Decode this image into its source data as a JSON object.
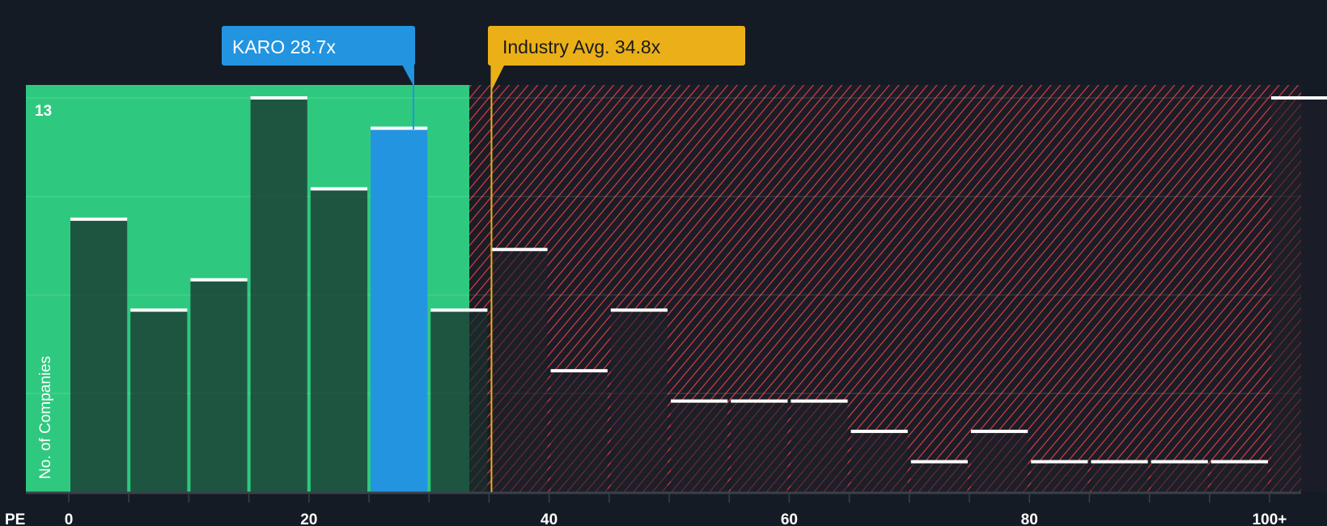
{
  "chart_data": {
    "type": "bar",
    "title": "",
    "xlabel": "PE",
    "ylabel": "No. of Companies",
    "ylim": [
      0,
      13
    ],
    "y_tick_labels": [
      "13"
    ],
    "x_tick_labels": [
      "0",
      "20",
      "40",
      "60",
      "80",
      "100+"
    ],
    "x_tick_values": [
      0,
      20,
      40,
      60,
      80,
      100
    ],
    "bin_width": 5,
    "bins": [
      0,
      5,
      10,
      15,
      20,
      25,
      30,
      35,
      40,
      45,
      50,
      55,
      60,
      65,
      70,
      75,
      80,
      85,
      90,
      95,
      100
    ],
    "values": [
      9,
      6,
      7,
      13,
      10,
      12,
      6,
      8,
      4,
      6,
      3,
      3,
      3,
      2,
      1,
      2,
      1,
      1,
      1,
      1,
      13
    ],
    "highlight_bin": 25,
    "company": {
      "label": "KARO 28.7x",
      "value": 28.7,
      "color": "#2394e0"
    },
    "industry": {
      "label": "Industry Avg. 34.8x",
      "value": 34.8,
      "color": "#ebb018"
    },
    "colors": {
      "background": "#151b24",
      "fair_zone": "#2ec97e",
      "bar_fair": "#1f4a3e",
      "bar_over": "#1e1f2a",
      "hatch": "#e8403e",
      "cap": "#ffffff"
    }
  }
}
